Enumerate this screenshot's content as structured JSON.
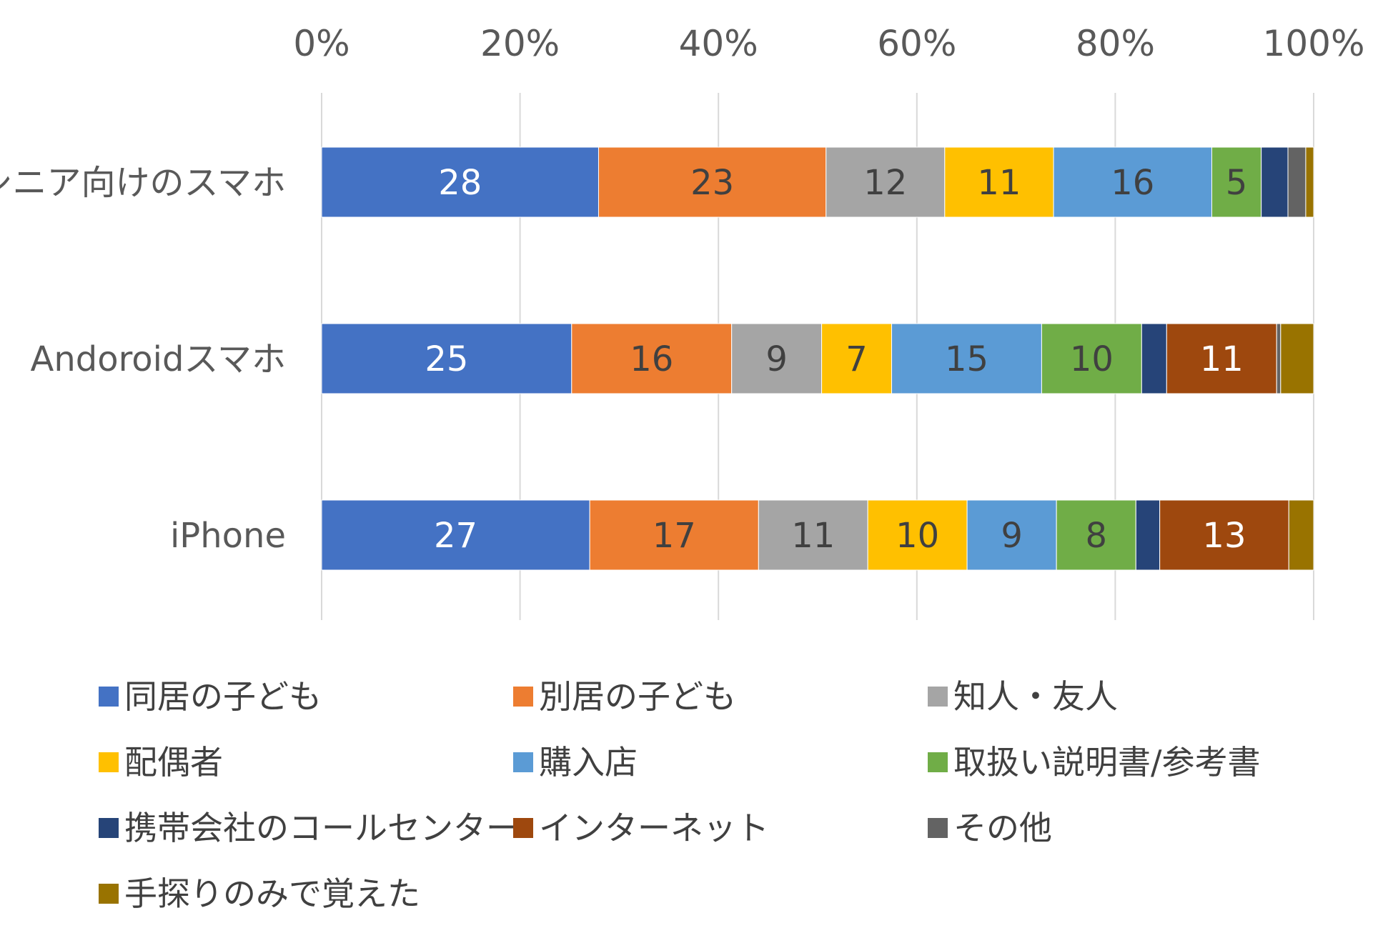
{
  "chart_data": {
    "type": "bar",
    "orientation": "horizontal",
    "stacked": "percent",
    "title": "",
    "xlabel": "",
    "ylabel": "",
    "xlim": [
      0,
      100
    ],
    "x_ticks": [
      "0%",
      "20%",
      "40%",
      "60%",
      "80%",
      "100%"
    ],
    "x_axis_position": "top",
    "grid": true,
    "legend_position": "bottom",
    "categories": [
      "シニア向けのスマホ",
      "Andoroidスマホ",
      "iPhone"
    ],
    "series": [
      {
        "name": "同居の子ども",
        "color": "#4472C4",
        "values": [
          28,
          25,
          27
        ],
        "labels": [
          "28",
          "25",
          "27"
        ],
        "label_color": "#ffffff"
      },
      {
        "name": "別居の子ども",
        "color": "#ED7D31",
        "values": [
          23,
          16,
          17
        ],
        "labels": [
          "23",
          "16",
          "17"
        ],
        "label_color": "#404040"
      },
      {
        "name": "知人・友人",
        "color": "#A5A5A5",
        "values": [
          12,
          9,
          11
        ],
        "labels": [
          "12",
          "9",
          "11"
        ],
        "label_color": "#404040"
      },
      {
        "name": "配偶者",
        "color": "#FFC000",
        "values": [
          11,
          7,
          10
        ],
        "labels": [
          "11",
          "7",
          "10"
        ],
        "label_color": "#404040"
      },
      {
        "name": "購入店",
        "color": "#5B9BD5",
        "values": [
          16,
          15,
          9
        ],
        "labels": [
          "16",
          "15",
          "9"
        ],
        "label_color": "#404040"
      },
      {
        "name": "取扱い説明書/参考書",
        "color": "#70AD47",
        "values": [
          5,
          10,
          8
        ],
        "labels": [
          "5",
          "10",
          "8"
        ],
        "label_color": "#404040"
      },
      {
        "name": "携帯会社のコールセンター",
        "color": "#264478",
        "values": [
          2.7,
          2.5,
          2.4
        ],
        "labels": [
          "",
          "",
          ""
        ],
        "label_color": "#ffffff"
      },
      {
        "name": "インターネット",
        "color": "#9E480E",
        "values": [
          0,
          11,
          13
        ],
        "labels": [
          "",
          "11",
          "13"
        ],
        "label_color": "#ffffff"
      },
      {
        "name": "その他",
        "color": "#636363",
        "values": [
          1.8,
          0.4,
          0
        ],
        "labels": [
          "",
          "",
          ""
        ],
        "label_color": "#ffffff"
      },
      {
        "name": "手探りのみで覚えた",
        "color": "#997300",
        "values": [
          0.8,
          3.3,
          2.5
        ],
        "labels": [
          "",
          "",
          ""
        ],
        "label_color": "#ffffff"
      }
    ]
  }
}
